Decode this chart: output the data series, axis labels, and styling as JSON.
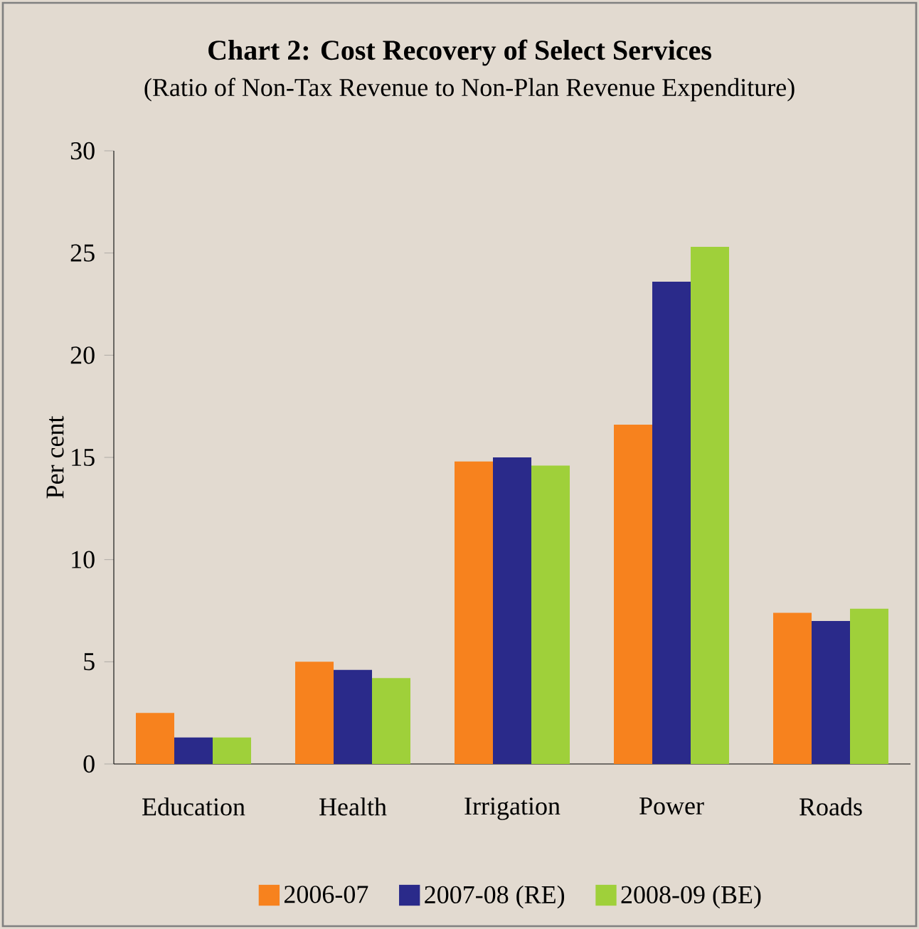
{
  "chart_data": {
    "type": "bar",
    "title": "Chart 2: Cost Recovery of Select Services",
    "subtitle": "(Ratio of Non-Tax Revenue to Non-Plan Revenue Expenditure)",
    "ylabel": "Per cent",
    "categories": [
      "Education",
      "Health",
      "Irrigation",
      "Power",
      "Roads"
    ],
    "series": [
      {
        "name": "2006-07",
        "color": "#f7821e",
        "values": [
          2.5,
          5.0,
          14.8,
          16.6,
          7.4
        ]
      },
      {
        "name": "2007-08 (RE)",
        "color": "#2a2a8a",
        "values": [
          1.3,
          4.6,
          15.0,
          23.6,
          7.0
        ]
      },
      {
        "name": "2008-09 (BE)",
        "color": "#9fd03a",
        "values": [
          1.3,
          4.2,
          14.6,
          25.3,
          7.6
        ]
      }
    ],
    "ylim": [
      0,
      30
    ],
    "yticks": [
      0,
      5,
      10,
      15,
      20,
      25,
      30
    ],
    "grid": false,
    "legend": "bottom"
  }
}
